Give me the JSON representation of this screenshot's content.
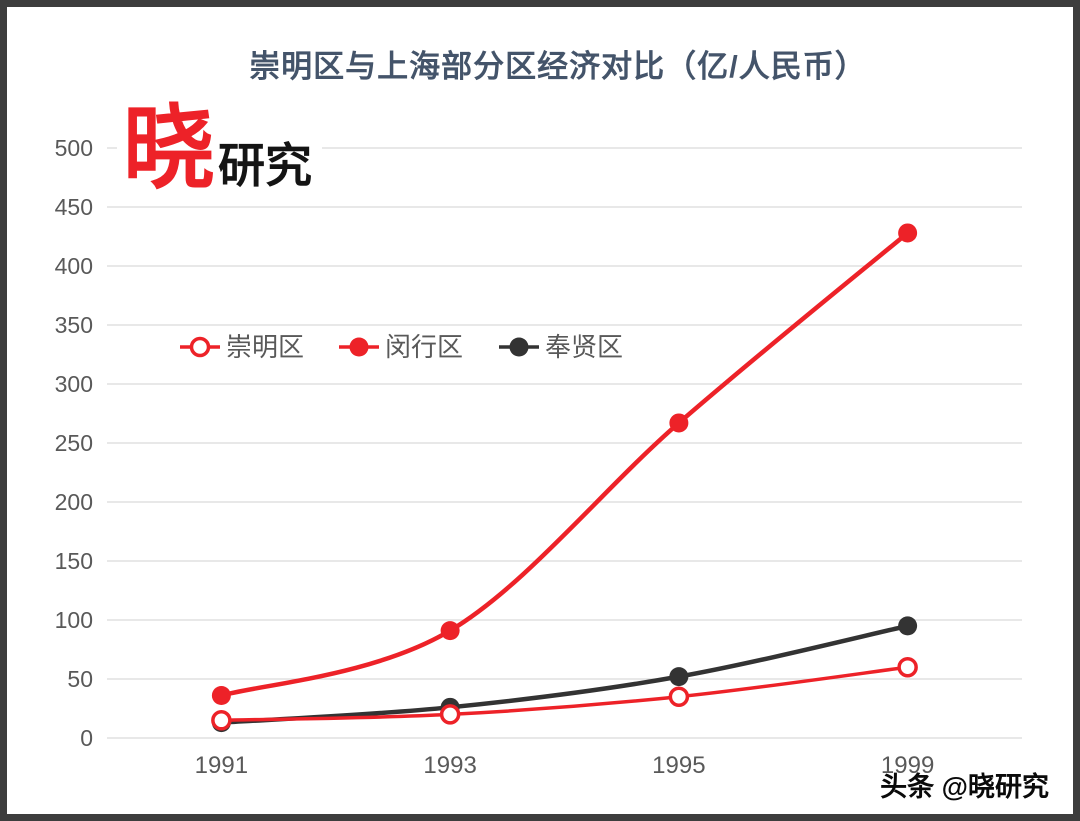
{
  "branding": {
    "logo_main": "晓",
    "logo_sub": "研究",
    "footer": "头条 @晓研究"
  },
  "chart_data": {
    "type": "line",
    "title": "崇明区与上海部分区经济对比（亿/人民币）",
    "categories": [
      "1991",
      "1993",
      "1995",
      "1999"
    ],
    "series": [
      {
        "name": "崇明区",
        "values": [
          15,
          20,
          35,
          60
        ],
        "color": "#ed2228",
        "marker": "hollow",
        "line_width": 3.5
      },
      {
        "name": "闵行区",
        "values": [
          36,
          91,
          267,
          428
        ],
        "color": "#ed2228",
        "marker": "filled",
        "line_width": 4.5
      },
      {
        "name": "奉贤区",
        "values": [
          13,
          26,
          52,
          95
        ],
        "color": "#333333",
        "marker": "filled",
        "line_width": 4.5
      }
    ],
    "ylim": [
      0,
      500
    ],
    "ytick_step": 50,
    "grid": true,
    "grid_color": "#d9d9d9",
    "axis_label_color": "#595959",
    "title_color": "#44546a",
    "legend_position": "inside-upper-left",
    "smooth": true
  }
}
